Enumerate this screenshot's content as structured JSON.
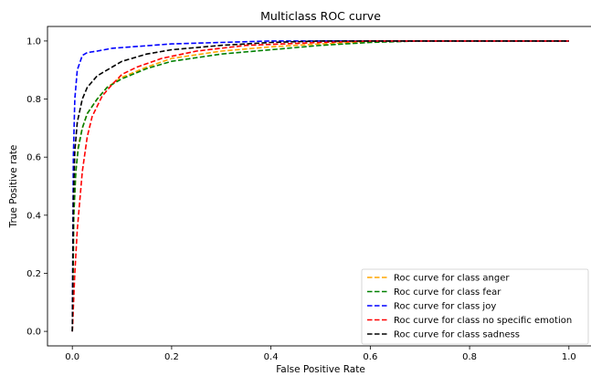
{
  "chart_data": {
    "type": "line",
    "title": "Multiclass ROC curve",
    "xlabel": "False Positive Rate",
    "ylabel": "True Positive rate",
    "xlim": [
      -0.05,
      1.05
    ],
    "ylim": [
      -0.05,
      1.05
    ],
    "xticks": [
      "0.0",
      "0.2",
      "0.4",
      "0.6",
      "0.8",
      "1.0"
    ],
    "yticks": [
      "0.0",
      "0.2",
      "0.4",
      "0.6",
      "0.8",
      "1.0"
    ],
    "grid": false,
    "legend_position": "lower-right",
    "series": [
      {
        "name": "Roc curve for class anger",
        "color": "#ffa500",
        "points": [
          [
            0,
            0
          ],
          [
            0.003,
            0.4
          ],
          [
            0.007,
            0.55
          ],
          [
            0.012,
            0.64
          ],
          [
            0.02,
            0.7
          ],
          [
            0.03,
            0.75
          ],
          [
            0.05,
            0.8
          ],
          [
            0.07,
            0.84
          ],
          [
            0.1,
            0.875
          ],
          [
            0.15,
            0.91
          ],
          [
            0.2,
            0.94
          ],
          [
            0.3,
            0.965
          ],
          [
            0.4,
            0.98
          ],
          [
            0.5,
            0.99
          ],
          [
            0.6,
            0.998
          ],
          [
            0.7,
            1.0
          ],
          [
            1.0,
            1.0
          ]
        ]
      },
      {
        "name": "Roc curve for class fear",
        "color": "#008000",
        "points": [
          [
            0,
            0
          ],
          [
            0.003,
            0.4
          ],
          [
            0.007,
            0.55
          ],
          [
            0.012,
            0.63
          ],
          [
            0.02,
            0.7
          ],
          [
            0.03,
            0.75
          ],
          [
            0.05,
            0.8
          ],
          [
            0.07,
            0.84
          ],
          [
            0.1,
            0.87
          ],
          [
            0.15,
            0.905
          ],
          [
            0.2,
            0.93
          ],
          [
            0.3,
            0.955
          ],
          [
            0.4,
            0.97
          ],
          [
            0.5,
            0.985
          ],
          [
            0.6,
            0.995
          ],
          [
            0.7,
            1.0
          ],
          [
            1.0,
            1.0
          ]
        ]
      },
      {
        "name": "Roc curve for class joy",
        "color": "#0000ff",
        "points": [
          [
            0,
            0
          ],
          [
            0.002,
            0.6
          ],
          [
            0.005,
            0.8
          ],
          [
            0.01,
            0.9
          ],
          [
            0.02,
            0.95
          ],
          [
            0.03,
            0.96
          ],
          [
            0.05,
            0.965
          ],
          [
            0.08,
            0.975
          ],
          [
            0.12,
            0.98
          ],
          [
            0.2,
            0.99
          ],
          [
            0.3,
            0.995
          ],
          [
            0.4,
            1.0
          ],
          [
            1.0,
            1.0
          ]
        ]
      },
      {
        "name": "Roc curve for class no specific emotion",
        "color": "#ff0000",
        "points": [
          [
            0,
            0
          ],
          [
            0.005,
            0.2
          ],
          [
            0.01,
            0.35
          ],
          [
            0.02,
            0.55
          ],
          [
            0.03,
            0.67
          ],
          [
            0.04,
            0.74
          ],
          [
            0.06,
            0.81
          ],
          [
            0.08,
            0.85
          ],
          [
            0.1,
            0.885
          ],
          [
            0.13,
            0.91
          ],
          [
            0.18,
            0.94
          ],
          [
            0.25,
            0.965
          ],
          [
            0.35,
            0.985
          ],
          [
            0.5,
            0.995
          ],
          [
            0.6,
            1.0
          ],
          [
            1.0,
            1.0
          ]
        ]
      },
      {
        "name": "Roc curve for class sadness",
        "color": "#000000",
        "points": [
          [
            0,
            0
          ],
          [
            0.002,
            0.45
          ],
          [
            0.005,
            0.62
          ],
          [
            0.01,
            0.72
          ],
          [
            0.02,
            0.8
          ],
          [
            0.03,
            0.84
          ],
          [
            0.05,
            0.88
          ],
          [
            0.08,
            0.91
          ],
          [
            0.1,
            0.93
          ],
          [
            0.15,
            0.955
          ],
          [
            0.2,
            0.97
          ],
          [
            0.3,
            0.985
          ],
          [
            0.4,
            0.995
          ],
          [
            0.5,
            1.0
          ],
          [
            1.0,
            1.0
          ]
        ]
      }
    ]
  }
}
